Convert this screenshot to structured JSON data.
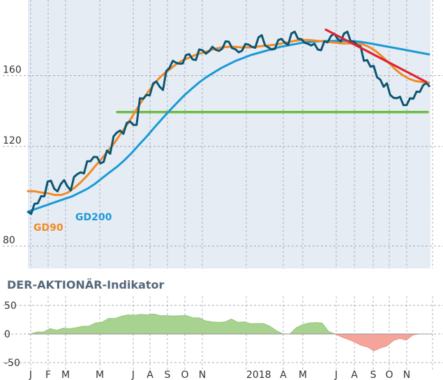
{
  "chart_data": [
    {
      "type": "line",
      "title": "",
      "y_ticks": [
        80,
        120,
        160
      ],
      "y_log_scale": true,
      "ylim": [
        68,
        205
      ],
      "grid": true,
      "x_labels": [
        "J",
        "F",
        "M",
        "M",
        "J",
        "A",
        "S",
        "O",
        "N",
        "2018",
        "A",
        "M",
        "J",
        "A",
        "S",
        "O",
        "N"
      ],
      "series": [
        {
          "name": "",
          "color": "#0d5673",
          "values": [
            92,
            95,
            98,
            104,
            101,
            103,
            102,
            106,
            108,
            113,
            115,
            112,
            118,
            125,
            128,
            132,
            131,
            146,
            148,
            155,
            153,
            163,
            170,
            168,
            174,
            171,
            178,
            175,
            180,
            177,
            184,
            179,
            176,
            182,
            180,
            187,
            181,
            178,
            185,
            183,
            190,
            186,
            183,
            181,
            178,
            184,
            188,
            186,
            190,
            184,
            181,
            170,
            166,
            159,
            153,
            148,
            146,
            142,
            146,
            150,
            154,
            153
          ]
        },
        {
          "name": "GD90",
          "color": "#f08a24",
          "values": [
            100,
            100,
            99.5,
            99.2,
            98.5,
            98.5,
            99.5,
            101.5,
            104,
            107,
            110.5,
            114,
            118,
            122,
            127,
            132,
            138,
            144,
            150,
            155.5,
            160,
            163.5,
            167,
            170,
            172,
            174,
            175.5,
            177,
            178.5,
            179.5,
            180,
            180,
            179.5,
            179.5,
            180,
            180.5,
            181,
            181.5,
            182.5,
            183.5,
            184.5,
            185,
            185,
            184.5,
            184,
            183.5,
            183,
            182.5,
            182.5,
            182.5,
            182,
            180,
            177,
            173,
            168.5,
            164,
            160.5,
            158,
            156.5,
            156,
            155.5
          ]
        },
        {
          "name": "GD200",
          "color": "#1a9ad6",
          "values": [
            92,
            93,
            94,
            95,
            96,
            97,
            98,
            99.5,
            101,
            103,
            105.5,
            108,
            110.5,
            113.5,
            117,
            121,
            125,
            129.5,
            134,
            138.5,
            143,
            147.5,
            151.5,
            155.5,
            159,
            162,
            165,
            167.5,
            170,
            172,
            174,
            175.5,
            177,
            178.5,
            180,
            181,
            182,
            183,
            183.5,
            184,
            184.2,
            184.3,
            184.3,
            184.3,
            184,
            183.5,
            182.5,
            181.5,
            180.5,
            179.5,
            178.5,
            177.5,
            176.5,
            175.5,
            174.5
          ]
        },
        {
          "name": "",
          "color": "#6cbd45",
          "values": [
            138,
            138
          ]
        },
        {
          "name": "",
          "color": "#e1232f",
          "values": [
            193,
            156
          ]
        }
      ]
    },
    {
      "type": "area",
      "title": "DER-AKTIONÄR-Indikator",
      "y_ticks": [
        50,
        0,
        -50
      ],
      "ylim": [
        -55,
        55
      ],
      "grid": true,
      "x_labels": [
        "J",
        "F",
        "M",
        "M",
        "J",
        "A",
        "S",
        "O",
        "N",
        "2018",
        "A",
        "M",
        "J",
        "A",
        "S",
        "O",
        "N"
      ],
      "series": [
        {
          "name": "",
          "values": [
            0,
            3,
            5,
            8,
            8,
            9,
            10,
            11,
            13,
            15,
            18,
            22,
            26,
            28,
            31,
            33,
            34,
            33,
            35,
            34,
            33,
            32,
            31,
            33,
            31,
            30,
            27,
            24,
            21,
            20,
            22,
            25,
            22,
            20,
            19,
            18,
            18,
            14,
            4,
            0,
            0,
            12,
            16,
            19,
            21,
            18,
            6,
            0,
            -4,
            -10,
            -14,
            -19,
            -24,
            -28,
            -26,
            -20,
            -12,
            -8,
            -10,
            -3,
            0
          ]
        }
      ]
    }
  ]
}
